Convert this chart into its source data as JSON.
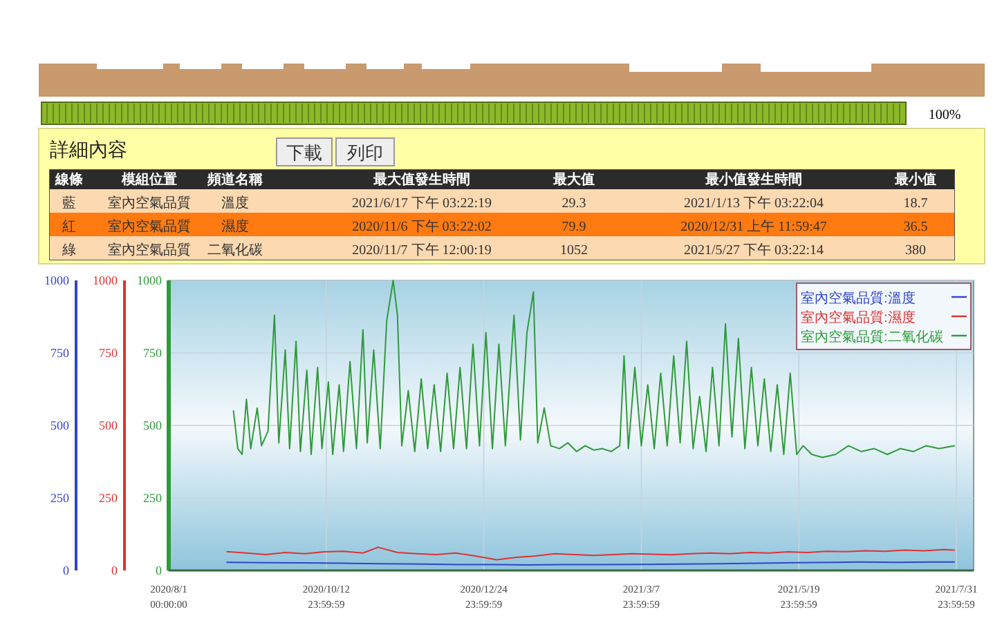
{
  "chart_data": [
    {
      "type": "other",
      "title": "詳細內容",
      "annotations": [
        "100%",
        "下載",
        "列印",
        "線條",
        "模組位置",
        "頻道名稱",
        "最大值發生時間",
        "最大值",
        "最小值發生時間",
        "最小值",
        "藍",
        "室內空氣品質",
        "溫度",
        "2021/6/17 下午 03:22:19",
        "29.3",
        "2021/1/13 下午 03:22:04",
        "18.7",
        "紅",
        "室內空氣品質",
        "濕度",
        "2020/11/6 下午 03:22:02",
        "79.9",
        "2020/12/31 上午 11:59:47",
        "36.5",
        "綠",
        "室內空氣品質",
        "二氧化碳",
        "2020/11/7 下午 12:00:19",
        "1052",
        "2021/5/27 下午 03:22:14",
        "380"
      ]
    },
    {
      "type": "line",
      "xlim": [
        "2020-08-01T00:00",
        "2021-08-09T00:00"
      ],
      "xticks": [
        {
          "value": "2020-08-01T00:00",
          "label": "2020/8/1 00:00:00"
        },
        {
          "value": "2020-10-12T23:59",
          "label": "2020/10/12 23:59:59"
        },
        {
          "value": "2020-12-24T23:59",
          "label": "2020/12/24 23:59:59"
        },
        {
          "value": "2021-03-07T23:59",
          "label": "2021/3/7 23:59:59"
        },
        {
          "value": "2021-05-19T23:59",
          "label": "2021/5/19 23:59:59"
        },
        {
          "value": "2021-07-31T23:59",
          "label": "2021/7/31 23:59:59"
        }
      ],
      "ylim": [
        0,
        1000
      ],
      "yticks": [
        0,
        250,
        500,
        750,
        1000
      ],
      "y2lim": [
        0,
        1000
      ],
      "y2ticks": [
        0,
        250,
        500,
        750,
        1000
      ],
      "y3lim": [
        0,
        1000
      ],
      "y3ticks": [
        0,
        250,
        500,
        750,
        1000
      ],
      "grid": true,
      "legend": "top right",
      "series": [
        {
          "name": "室內空氣品質:溫度",
          "color": "#3344cc",
          "axis": "y3",
          "x": [
            "2020-08-28",
            "2020-09-15",
            "2020-10-03",
            "2020-10-21",
            "2020-11-08",
            "2020-11-26",
            "2020-12-14",
            "2021-01-01",
            "2021-01-13",
            "2021-01-31",
            "2021-02-18",
            "2021-03-08",
            "2021-03-26",
            "2021-04-13",
            "2021-05-01",
            "2021-05-19",
            "2021-06-06",
            "2021-06-17",
            "2021-07-05",
            "2021-07-20",
            "2021-07-31"
          ],
          "values": [
            28,
            27,
            26,
            25,
            23,
            22,
            20,
            20,
            19,
            20,
            20,
            21,
            22,
            23,
            25,
            27,
            28,
            29,
            28,
            29,
            29
          ]
        },
        {
          "name": "室內空氣品質:濕度",
          "color": "#dd3333",
          "axis": "y2",
          "x": [
            "2020-08-28",
            "2020-09-06",
            "2020-09-15",
            "2020-09-24",
            "2020-10-03",
            "2020-10-12",
            "2020-10-21",
            "2020-10-30",
            "2020-11-06",
            "2020-11-15",
            "2020-11-24",
            "2020-12-03",
            "2020-12-12",
            "2020-12-21",
            "2020-12-31",
            "2021-01-09",
            "2021-01-18",
            "2021-01-27",
            "2021-02-05",
            "2021-02-14",
            "2021-02-23",
            "2021-03-04",
            "2021-03-13",
            "2021-03-22",
            "2021-03-31",
            "2021-04-09",
            "2021-04-18",
            "2021-04-27",
            "2021-05-06",
            "2021-05-15",
            "2021-05-24",
            "2021-06-02",
            "2021-06-11",
            "2021-06-20",
            "2021-06-29",
            "2021-07-08",
            "2021-07-17",
            "2021-07-26",
            "2021-07-31"
          ],
          "values": [
            65,
            60,
            55,
            62,
            58,
            64,
            66,
            60,
            80,
            62,
            58,
            55,
            60,
            50,
            37,
            45,
            50,
            58,
            55,
            52,
            55,
            58,
            56,
            54,
            58,
            60,
            58,
            62,
            60,
            64,
            62,
            66,
            65,
            68,
            66,
            70,
            68,
            72,
            70
          ]
        },
        {
          "name": "室內空氣品質:二氧化碳",
          "color": "#2f9a3a",
          "axis": "y",
          "x": [
            "2020-08-31",
            "2020-09-02",
            "2020-09-04",
            "2020-09-06",
            "2020-09-08",
            "2020-09-11",
            "2020-09-13",
            "2020-09-16",
            "2020-09-19",
            "2020-09-21",
            "2020-09-24",
            "2020-09-26",
            "2020-09-29",
            "2020-10-01",
            "2020-10-04",
            "2020-10-06",
            "2020-10-09",
            "2020-10-11",
            "2020-10-14",
            "2020-10-16",
            "2020-10-19",
            "2020-10-21",
            "2020-10-24",
            "2020-10-27",
            "2020-10-30",
            "2020-11-01",
            "2020-11-04",
            "2020-11-07",
            "2020-11-10",
            "2020-11-13",
            "2020-11-15",
            "2020-11-17",
            "2020-11-20",
            "2020-11-23",
            "2020-11-26",
            "2020-11-29",
            "2020-12-02",
            "2020-12-05",
            "2020-12-08",
            "2020-12-11",
            "2020-12-14",
            "2020-12-17",
            "2020-12-20",
            "2020-12-23",
            "2020-12-26",
            "2020-12-29",
            "2021-01-01",
            "2021-01-04",
            "2021-01-08",
            "2021-01-11",
            "2021-01-14",
            "2021-01-17",
            "2021-01-19",
            "2021-01-22",
            "2021-01-25",
            "2021-01-29",
            "2021-02-02",
            "2021-02-06",
            "2021-02-10",
            "2021-02-14",
            "2021-02-18",
            "2021-02-22",
            "2021-02-26",
            "2021-02-28",
            "2021-03-02",
            "2021-03-05",
            "2021-03-08",
            "2021-03-11",
            "2021-03-14",
            "2021-03-17",
            "2021-03-20",
            "2021-03-23",
            "2021-03-26",
            "2021-03-29",
            "2021-04-01",
            "2021-04-04",
            "2021-04-07",
            "2021-04-10",
            "2021-04-13",
            "2021-04-16",
            "2021-04-19",
            "2021-04-22",
            "2021-04-25",
            "2021-04-28",
            "2021-05-01",
            "2021-05-04",
            "2021-05-07",
            "2021-05-10",
            "2021-05-13",
            "2021-05-16",
            "2021-05-19",
            "2021-05-22",
            "2021-05-26",
            "2021-05-31",
            "2021-06-06",
            "2021-06-12",
            "2021-06-18",
            "2021-06-24",
            "2021-06-30",
            "2021-07-06",
            "2021-07-12",
            "2021-07-18",
            "2021-07-24",
            "2021-07-31"
          ],
          "values": [
            550,
            420,
            400,
            590,
            420,
            560,
            430,
            480,
            880,
            440,
            760,
            420,
            790,
            410,
            690,
            400,
            700,
            420,
            650,
            400,
            640,
            410,
            720,
            420,
            830,
            440,
            760,
            420,
            860,
            1000,
            880,
            430,
            620,
            410,
            660,
            420,
            640,
            410,
            680,
            420,
            700,
            420,
            780,
            430,
            820,
            420,
            780,
            430,
            880,
            450,
            820,
            960,
            440,
            560,
            430,
            420,
            440,
            410,
            430,
            415,
            420,
            410,
            430,
            740,
            420,
            700,
            430,
            640,
            420,
            680,
            430,
            740,
            440,
            790,
            420,
            600,
            410,
            700,
            430,
            850,
            460,
            800,
            420,
            700,
            430,
            660,
            410,
            640,
            400,
            680,
            400,
            430,
            400,
            390,
            400,
            430,
            410,
            420,
            400,
            420,
            410,
            430,
            420,
            430
          ]
        }
      ]
    }
  ]
}
